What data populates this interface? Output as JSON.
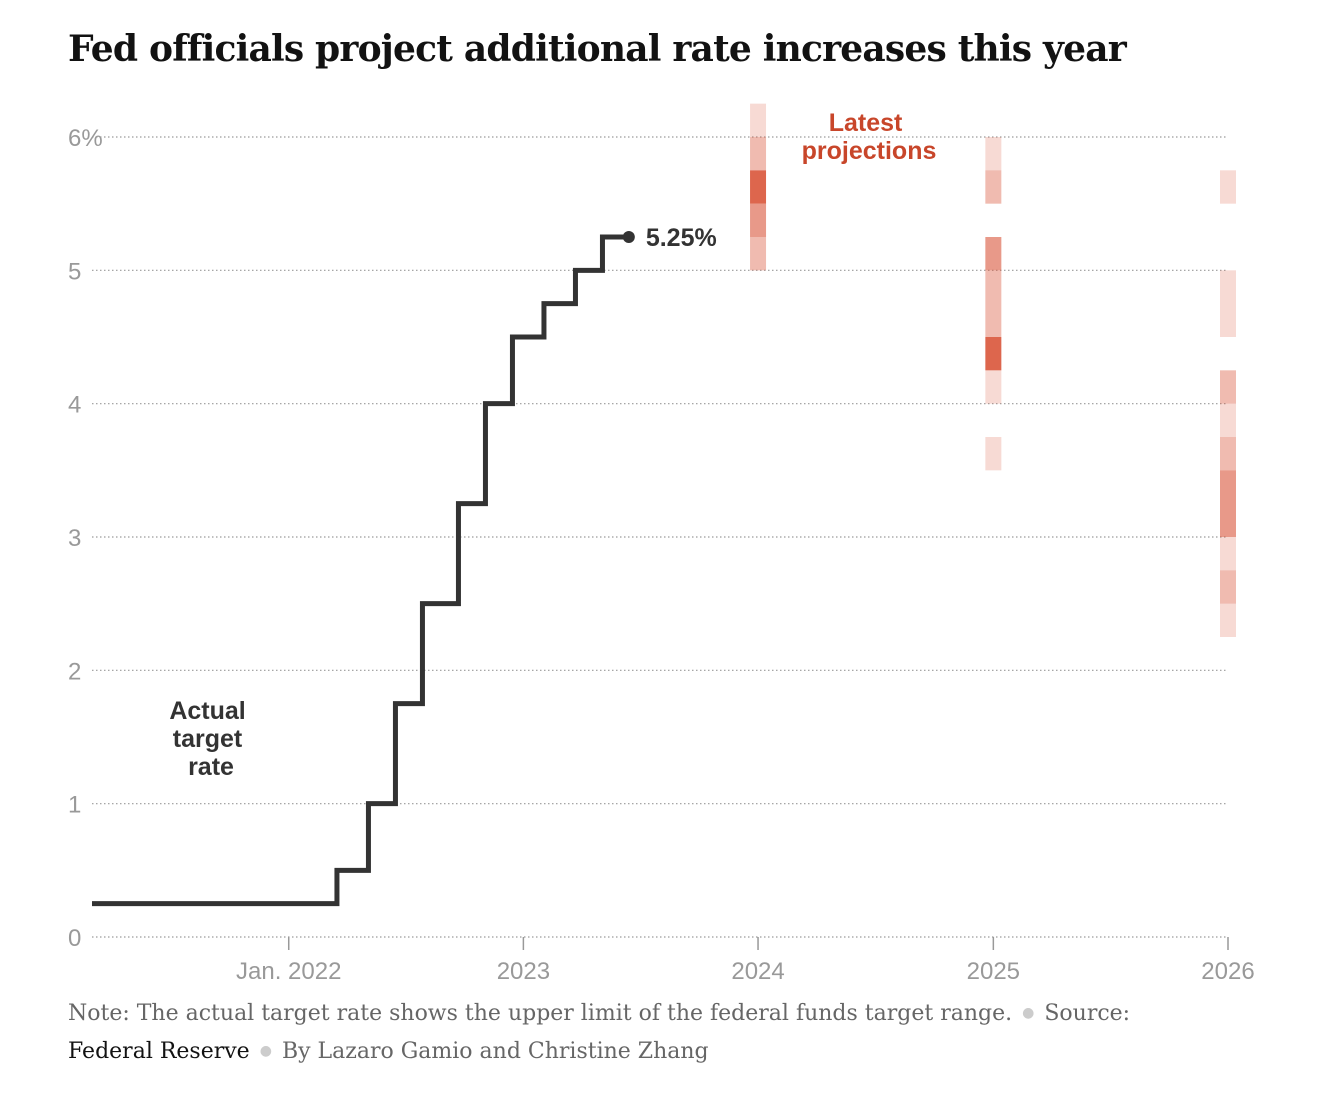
{
  "title": "Fed officials project additional rate increases this year",
  "chart_data": {
    "type": "line",
    "y_axis": {
      "ticks": [
        0,
        1,
        2,
        3,
        4,
        5,
        6
      ],
      "tick_labels": [
        "0",
        "1",
        "2",
        "3",
        "4",
        "5",
        "6%"
      ],
      "range": [
        0,
        6
      ]
    },
    "x_axis": {
      "ticks": [
        "2022-01-01",
        "2023-01-01",
        "2024-01-01",
        "2025-01-01",
        "2026-01-01"
      ],
      "tick_labels": [
        "Jan. 2022",
        "2023",
        "2024",
        "2025",
        "2026"
      ],
      "range": [
        "2021-03-01",
        "2026-01-01"
      ]
    },
    "grid": "horizontal dotted",
    "series": [
      {
        "name": "Actual target rate",
        "color": "#333333",
        "step": true,
        "points": [
          [
            "2021-03-01",
            0.25
          ],
          [
            "2022-03-17",
            0.5
          ],
          [
            "2022-05-05",
            1.0
          ],
          [
            "2022-06-16",
            1.75
          ],
          [
            "2022-07-28",
            2.5
          ],
          [
            "2022-09-22",
            3.25
          ],
          [
            "2022-11-03",
            4.0
          ],
          [
            "2022-12-15",
            4.5
          ],
          [
            "2023-02-02",
            4.75
          ],
          [
            "2023-03-23",
            5.0
          ],
          [
            "2023-05-04",
            5.25
          ],
          [
            "2023-06-14",
            5.25
          ]
        ]
      }
    ],
    "end_label": "5.25%",
    "projections": {
      "name": "Latest projections",
      "color": "#d9553a",
      "columns": [
        {
          "year": "2024-01-01",
          "bands": [
            {
              "from": 6.0,
              "to": 6.25,
              "level": 1
            },
            {
              "from": 5.75,
              "to": 6.0,
              "level": 2
            },
            {
              "from": 5.5,
              "to": 5.75,
              "level": 4
            },
            {
              "from": 5.25,
              "to": 5.5,
              "level": 3
            },
            {
              "from": 5.0,
              "to": 5.25,
              "level": 2
            }
          ]
        },
        {
          "year": "2025-01-01",
          "bands": [
            {
              "from": 5.75,
              "to": 6.0,
              "level": 1
            },
            {
              "from": 5.5,
              "to": 5.75,
              "level": 2
            },
            {
              "from": 5.0,
              "to": 5.25,
              "level": 3
            },
            {
              "from": 4.5,
              "to": 5.0,
              "level": 2
            },
            {
              "from": 4.25,
              "to": 4.5,
              "level": 4
            },
            {
              "from": 4.0,
              "to": 4.25,
              "level": 1
            },
            {
              "from": 3.5,
              "to": 3.75,
              "level": 1
            }
          ]
        },
        {
          "year": "2026-01-01",
          "bands": [
            {
              "from": 5.5,
              "to": 5.75,
              "level": 1
            },
            {
              "from": 4.5,
              "to": 5.0,
              "level": 1
            },
            {
              "from": 4.0,
              "to": 4.25,
              "level": 2
            },
            {
              "from": 3.75,
              "to": 4.0,
              "level": 1
            },
            {
              "from": 3.5,
              "to": 3.75,
              "level": 2
            },
            {
              "from": 3.0,
              "to": 3.5,
              "level": 3
            },
            {
              "from": 2.75,
              "to": 3.0,
              "level": 1
            },
            {
              "from": 2.5,
              "to": 2.75,
              "level": 2
            },
            {
              "from": 2.25,
              "to": 2.5,
              "level": 1
            }
          ]
        }
      ]
    },
    "annotations": {
      "series_label_lines": [
        "Actual",
        "target",
        "rate"
      ],
      "projection_label_lines": [
        "Latest",
        "projections"
      ]
    }
  },
  "footer": {
    "note": "Note: The actual target rate shows the upper limit of the federal funds target range.",
    "source_label": "Source:",
    "source": "Federal Reserve",
    "byline": "By Lazaro Gamio and Christine Zhang"
  }
}
